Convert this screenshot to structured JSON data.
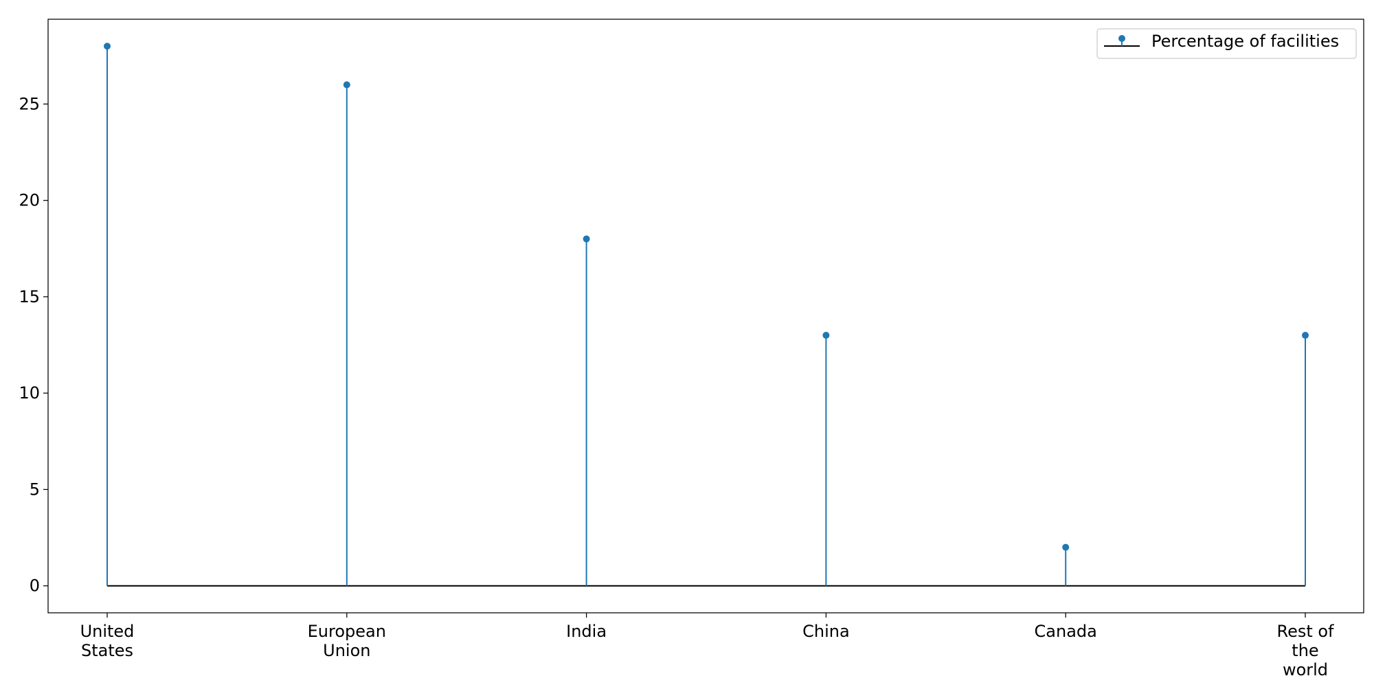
{
  "chart_data": {
    "type": "stem",
    "categories": [
      [
        "United",
        "States"
      ],
      [
        "European",
        "Union"
      ],
      [
        "India"
      ],
      [
        "China"
      ],
      [
        "Canada"
      ],
      [
        "Rest of",
        "the",
        "world"
      ]
    ],
    "series": [
      {
        "name": "Percentage of facilities",
        "values": [
          28,
          26,
          18,
          13,
          2,
          13
        ],
        "color": "#1f77b4"
      }
    ],
    "baseline_color": "#000000",
    "ylim": [
      -1.4,
      29.4
    ],
    "yticks": [
      "0",
      "5",
      "10",
      "15",
      "20",
      "25"
    ],
    "grid": false,
    "legend_position": "top-right"
  }
}
